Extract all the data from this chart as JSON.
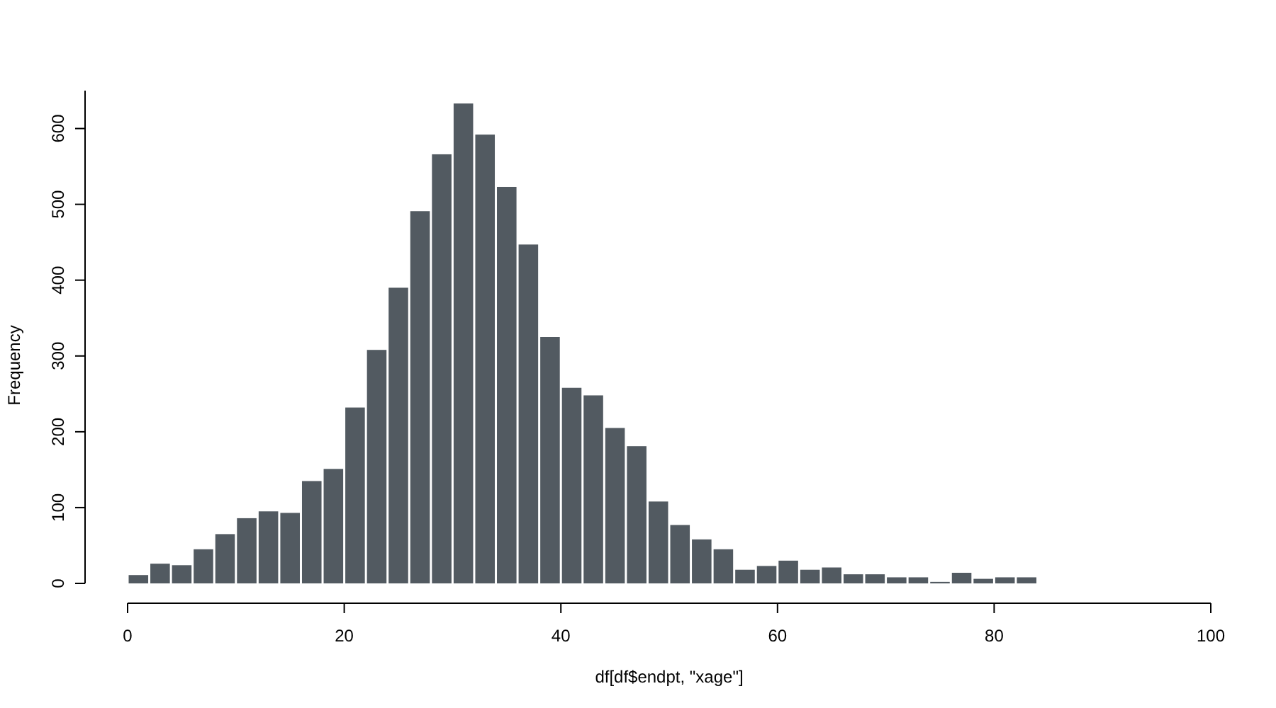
{
  "chart_data": {
    "type": "histogram",
    "xlabel": "df[df$endpt, \"xage\"]",
    "ylabel": "Frequency",
    "color": "#525a61",
    "bins": [
      0,
      2,
      4,
      6,
      8,
      10,
      12,
      14,
      16,
      18,
      20,
      22,
      24,
      26,
      28,
      30,
      32,
      34,
      36,
      38,
      40,
      42,
      44,
      46,
      48,
      50,
      52,
      54,
      56,
      58,
      60,
      62,
      64,
      66,
      68,
      70,
      72,
      74,
      76,
      78,
      80,
      82,
      84
    ],
    "values": [
      11,
      26,
      24,
      45,
      65,
      86,
      95,
      93,
      135,
      151,
      232,
      308,
      390,
      491,
      566,
      633,
      592,
      523,
      447,
      325,
      258,
      248,
      205,
      181,
      108,
      77,
      58,
      45,
      18,
      23,
      30,
      18,
      21,
      12,
      12,
      8,
      8,
      2,
      14,
      6,
      8,
      8
    ],
    "xlim": [
      0,
      100
    ],
    "xticks": [
      0,
      20,
      40,
      60,
      80,
      100
    ],
    "ylim": [
      0,
      650
    ],
    "yticks": [
      0,
      100,
      200,
      300,
      400,
      500,
      600
    ]
  }
}
